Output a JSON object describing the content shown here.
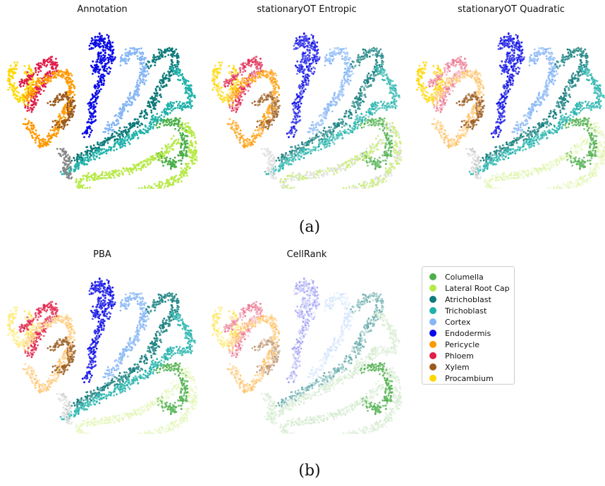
{
  "captions": {
    "a": "(a)",
    "b": "(b)"
  },
  "legend": [
    {
      "label": "Columella",
      "color": "#4daf4a"
    },
    {
      "label": "Lateral Root Cap",
      "color": "#b8e94a"
    },
    {
      "label": "Atrichoblast",
      "color": "#0f7b7b"
    },
    {
      "label": "Trichoblast",
      "color": "#20b2aa"
    },
    {
      "label": "Cortex",
      "color": "#86b6f6"
    },
    {
      "label": "Endodermis",
      "color": "#0a0ae6"
    },
    {
      "label": "Pericycle",
      "color": "#ff9900"
    },
    {
      "label": "Phloem",
      "color": "#e0204a"
    },
    {
      "label": "Xylem",
      "color": "#9a5a1e"
    },
    {
      "label": "Procambium",
      "color": "#ffd700"
    }
  ],
  "chart_data": [
    {
      "type": "scatter",
      "title": "Annotation",
      "style": "full"
    },
    {
      "type": "scatter",
      "title": "stationaryOT Entropic",
      "style": "entropic"
    },
    {
      "type": "scatter",
      "title": "stationaryOT Quadratic",
      "style": "quadratic"
    },
    {
      "type": "scatter",
      "title": "PBA",
      "style": "pba"
    },
    {
      "type": "scatter",
      "title": "CellRank",
      "style": "cellrank"
    }
  ]
}
